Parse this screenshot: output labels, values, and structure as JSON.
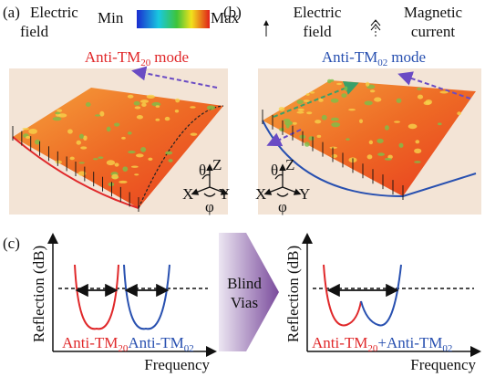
{
  "panel_a": {
    "label": "(a)",
    "legend": [
      "Electric",
      "field"
    ],
    "colorbar_min": "Min",
    "colorbar_max": "Max",
    "mode": {
      "prefix": "Anti-TM",
      "sub": "20",
      "suffix": "mode"
    },
    "axes": {
      "theta": "θ",
      "z": "Z",
      "x": "X",
      "y": "Y",
      "phi": "φ"
    }
  },
  "panel_b": {
    "label": "(b)",
    "legend_electric": [
      "Electric",
      "field"
    ],
    "legend_magnetic": [
      "Magnetic",
      "current"
    ],
    "mode": {
      "prefix": "Anti-TM",
      "sub": "02",
      "suffix": "mode"
    },
    "axes": {
      "theta": "θ",
      "z": "Z",
      "x": "X",
      "y": "Y",
      "phi": "φ"
    }
  },
  "panel_c": {
    "label": "(c)",
    "left": {
      "y_label": "Reflection (dB)",
      "x_label": "Frequency",
      "curve_1": {
        "prefix": "Anti-TM",
        "sub": "20"
      },
      "curve_2": {
        "prefix": "Anti-TM",
        "sub": "02"
      }
    },
    "middle": [
      "Blind",
      "Vias"
    ],
    "right": {
      "y_label": "Reflection (dB)",
      "x_label": "Frequency",
      "curve_1": {
        "prefix": "Anti-TM",
        "sub": "20"
      },
      "curve_2": {
        "prefix": "+Anti-TM",
        "sub": "02"
      }
    }
  }
}
